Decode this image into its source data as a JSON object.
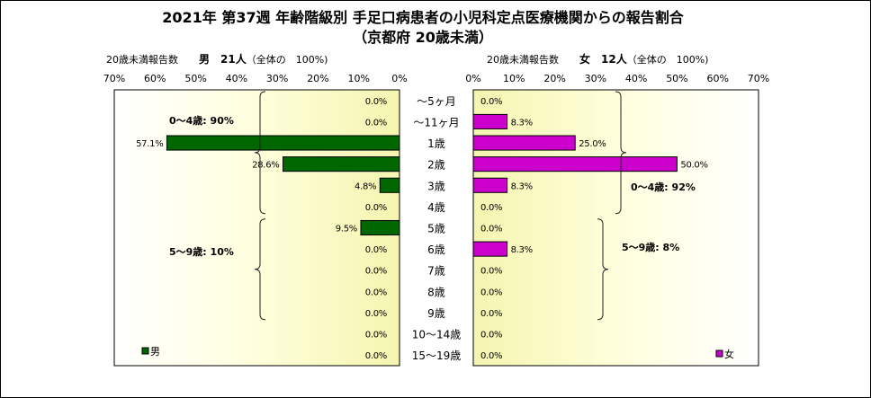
{
  "title_line1": "2021年 第37週 年齢階級別 手足口病患者の小児科定点医療機関からの報告割合",
  "title_line2": "（京都府 20歳未満）",
  "chart_data": {
    "type": "bar",
    "orientation": "horizontal",
    "categories": [
      "～5ヶ月",
      "～11ヶ月",
      "1歳",
      "2歳",
      "3歳",
      "4歳",
      "5歳",
      "6歳",
      "7歳",
      "8歳",
      "9歳",
      "10～14歳",
      "15～19歳"
    ],
    "xlim": [
      0,
      70
    ],
    "x_ticks": [
      "70%",
      "60%",
      "50%",
      "40%",
      "30%",
      "20%",
      "10%",
      "0%"
    ],
    "x_ticks_right": [
      "0%",
      "10%",
      "20%",
      "30%",
      "40%",
      "50%",
      "60%",
      "70%"
    ],
    "left_panel": {
      "header_prefix": "20歳未満報告数",
      "header_bold": "男　21人",
      "header_suffix": "（全体の　100%)",
      "legend": "男",
      "color": "#006600",
      "values": [
        0.0,
        0.0,
        57.1,
        28.6,
        4.8,
        0.0,
        9.5,
        0.0,
        0.0,
        0.0,
        0.0,
        0.0,
        0.0
      ],
      "labels": [
        "0.0%",
        "0.0%",
        "57.1%",
        "28.6%",
        "4.8%",
        "0.0%",
        "9.5%",
        "0.0%",
        "0.0%",
        "0.0%",
        "0.0%",
        "0.0%",
        "0.0%"
      ],
      "annotations": [
        {
          "text": "0～4歳: 90%",
          "from": 0,
          "to": 5
        },
        {
          "text": "5～9歳: 10%",
          "from": 6,
          "to": 10
        }
      ]
    },
    "right_panel": {
      "header_prefix": "20歳未満報告数",
      "header_bold": "女　12人",
      "header_suffix": "（全体の　100%)",
      "legend": "女",
      "color": "#cc00cc",
      "values": [
        0.0,
        8.3,
        25.0,
        50.0,
        8.3,
        0.0,
        0.0,
        8.3,
        0.0,
        0.0,
        0.0,
        0.0,
        0.0
      ],
      "labels": [
        "0.0%",
        "8.3%",
        "25.0%",
        "50.0%",
        "8.3%",
        "0.0%",
        "0.0%",
        "8.3%",
        "0.0%",
        "0.0%",
        "0.0%",
        "0.0%",
        "0.0%"
      ],
      "annotations": [
        {
          "text": "0～4歳: 92%",
          "from": 0,
          "to": 5
        },
        {
          "text": "5～9歳: 8%",
          "from": 6,
          "to": 10
        }
      ]
    },
    "grid": false,
    "legend_position": "bottom-left / bottom-right"
  }
}
